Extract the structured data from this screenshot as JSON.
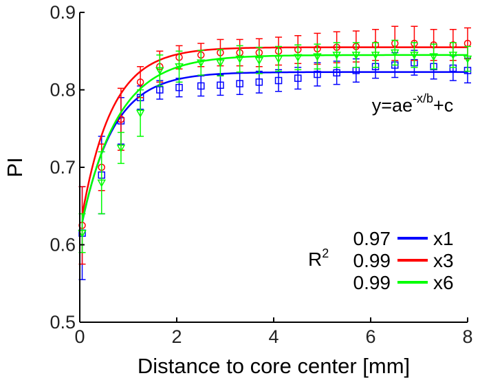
{
  "chart_data": {
    "type": "line",
    "title": "",
    "xlabel": "Distance to core center [mm]",
    "ylabel": "PI",
    "xlim": [
      0,
      8
    ],
    "ylim": [
      0.5,
      0.9
    ],
    "xticks": [
      0,
      2,
      4,
      6,
      8
    ],
    "yticks": [
      0.5,
      0.6,
      0.7,
      0.8,
      0.9
    ],
    "xtick_labels": [
      "0",
      "2",
      "4",
      "6",
      "8"
    ],
    "ytick_labels": [
      "0.5",
      "0.6",
      "0.7",
      "0.8",
      "0.9"
    ],
    "grid": false,
    "equation": {
      "base": "y=ae",
      "exponent": "-x/b",
      "tail": "+c"
    },
    "r2_label": {
      "base": "R",
      "sup": "2"
    },
    "legend": [
      {
        "r2": "0.97",
        "name": "x1",
        "color": "#0000ff"
      },
      {
        "r2": "0.99",
        "name": "x3",
        "color": "#ff0000"
      },
      {
        "r2": "0.99",
        "name": "x6",
        "color": "#00ff00"
      }
    ],
    "x": [
      0.05,
      0.45,
      0.85,
      1.25,
      1.65,
      2.05,
      2.5,
      2.9,
      3.3,
      3.7,
      4.1,
      4.5,
      4.9,
      5.3,
      5.7,
      6.1,
      6.5,
      6.9,
      7.3,
      7.7,
      8.0
    ],
    "series": [
      {
        "name": "x1",
        "color": "#0000ff",
        "marker": "square",
        "values": [
          0.615,
          0.69,
          0.76,
          0.79,
          0.8,
          0.803,
          0.805,
          0.806,
          0.808,
          0.81,
          0.812,
          0.815,
          0.82,
          0.822,
          0.825,
          0.83,
          0.832,
          0.835,
          0.83,
          0.828,
          0.825
        ],
        "errors": [
          0.06,
          0.05,
          0.03,
          0.015,
          0.012,
          0.012,
          0.013,
          0.013,
          0.014,
          0.014,
          0.014,
          0.014,
          0.015,
          0.015,
          0.015,
          0.015,
          0.016,
          0.016,
          0.016,
          0.016,
          0.016
        ],
        "fit": {
          "a": -0.21,
          "b": 0.65,
          "c": 0.823
        }
      },
      {
        "name": "x3",
        "color": "#ff0000",
        "marker": "circle",
        "values": [
          0.625,
          0.7,
          0.762,
          0.81,
          0.83,
          0.842,
          0.845,
          0.848,
          0.848,
          0.848,
          0.85,
          0.852,
          0.853,
          0.855,
          0.856,
          0.858,
          0.86,
          0.86,
          0.858,
          0.858,
          0.86
        ],
        "errors": [
          0.05,
          0.03,
          0.04,
          0.02,
          0.02,
          0.015,
          0.015,
          0.017,
          0.017,
          0.018,
          0.018,
          0.018,
          0.02,
          0.02,
          0.02,
          0.02,
          0.022,
          0.022,
          0.02,
          0.02,
          0.02
        ],
        "fit": {
          "a": -0.235,
          "b": 0.62,
          "c": 0.855
        }
      },
      {
        "name": "x6",
        "color": "#00ff00",
        "marker": "triangle",
        "values": [
          0.615,
          0.68,
          0.725,
          0.77,
          0.825,
          0.83,
          0.835,
          0.835,
          0.84,
          0.838,
          0.84,
          0.842,
          0.843,
          0.845,
          0.845,
          0.845,
          0.848,
          0.845,
          0.843,
          0.845,
          0.84
        ],
        "errors": [
          0.025,
          0.04,
          0.02,
          0.03,
          0.02,
          0.02,
          0.016,
          0.017,
          0.017,
          0.017,
          0.016,
          0.016,
          0.016,
          0.016,
          0.016,
          0.016,
          0.016,
          0.016,
          0.016,
          0.016,
          0.016
        ],
        "fit": {
          "a": -0.23,
          "b": 0.75,
          "c": 0.845
        }
      }
    ]
  }
}
